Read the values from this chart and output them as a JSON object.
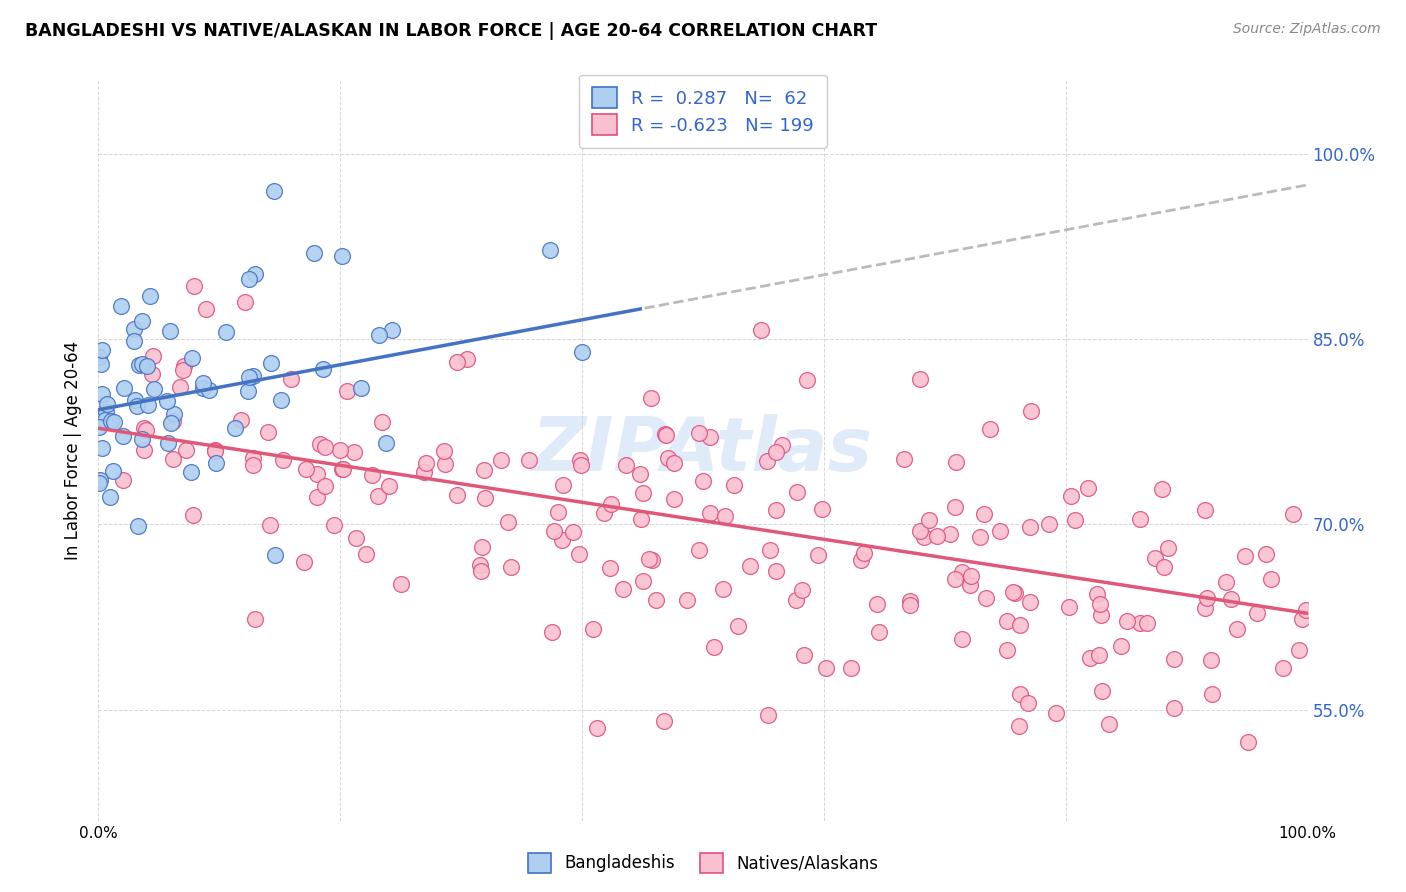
{
  "title": "BANGLADESHI VS NATIVE/ALASKAN IN LABOR FORCE | AGE 20-64 CORRELATION CHART",
  "source": "Source: ZipAtlas.com",
  "ylabel": "In Labor Force | Age 20-64",
  "yticks": [
    "55.0%",
    "70.0%",
    "85.0%",
    "100.0%"
  ],
  "ytick_vals": [
    0.55,
    0.7,
    0.85,
    1.0
  ],
  "xlim": [
    0.0,
    1.0
  ],
  "ylim": [
    0.46,
    1.06
  ],
  "blue_fill": "#AECFF0",
  "blue_edge": "#4472C4",
  "pink_fill": "#F9C0D0",
  "pink_edge": "#E05080",
  "pink_line_color": "#E05878",
  "blue_line_color": "#4472C4",
  "dashed_line_color": "#BBBBBB",
  "R_blue": 0.287,
  "N_blue": 62,
  "R_pink": -0.623,
  "N_pink": 199,
  "legend_text_color": "#3366CC",
  "watermark_color": "#B8D4F0",
  "blue_line_x0": 0.0,
  "blue_line_y0": 0.793,
  "blue_line_x1": 0.45,
  "blue_line_y1": 0.875,
  "pink_line_x0": 0.0,
  "pink_line_y0": 0.778,
  "pink_line_x1": 1.0,
  "pink_line_y1": 0.628
}
